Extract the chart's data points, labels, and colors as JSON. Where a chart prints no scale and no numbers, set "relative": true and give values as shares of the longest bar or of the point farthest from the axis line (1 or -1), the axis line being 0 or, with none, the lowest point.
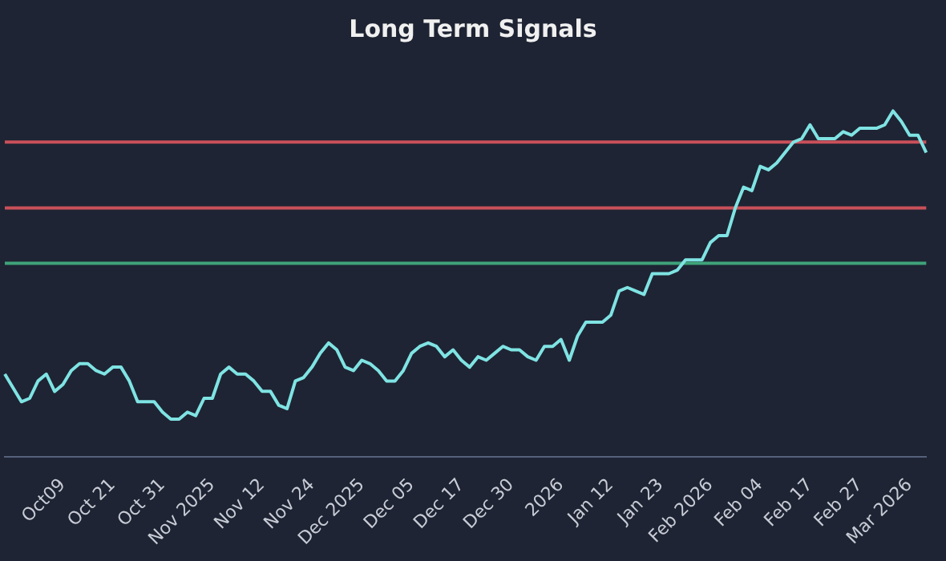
{
  "chart_data": {
    "type": "line",
    "title": "Long Term Signals",
    "relative": true,
    "categories": [
      null,
      null,
      null,
      null,
      null,
      null,
      null,
      "Oct09",
      null,
      null,
      null,
      null,
      null,
      "Oct 21",
      null,
      null,
      null,
      null,
      null,
      "Oct 31",
      null,
      null,
      null,
      null,
      null,
      "Nov 2025",
      null,
      null,
      null,
      null,
      null,
      "Nov 12",
      null,
      null,
      null,
      null,
      null,
      "Nov 24",
      null,
      null,
      null,
      null,
      null,
      "Dec 2025",
      null,
      null,
      null,
      null,
      null,
      "Dec 05",
      null,
      null,
      null,
      null,
      null,
      "Dec 17",
      null,
      null,
      null,
      null,
      null,
      "Dec 30",
      null,
      null,
      null,
      null,
      null,
      "2026",
      null,
      null,
      null,
      null,
      null,
      "Jan 12",
      null,
      null,
      null,
      null,
      null,
      "Jan 23",
      null,
      null,
      null,
      null,
      null,
      "Feb 2026",
      null,
      null,
      null,
      null,
      null,
      "Feb 04",
      null,
      null,
      null,
      null,
      null,
      "Feb 17",
      null,
      null,
      null,
      null,
      null,
      "Feb 27",
      null,
      null,
      null,
      null,
      null,
      "Mar 2026",
      null,
      null
    ],
    "series": [
      {
        "color": "#7fe3e3",
        "values": [
          0.24,
          0.2,
          0.16,
          0.17,
          0.22,
          0.24,
          0.19,
          0.21,
          0.25,
          0.27,
          0.27,
          0.25,
          0.24,
          0.26,
          0.26,
          0.22,
          0.16,
          0.16,
          0.16,
          0.13,
          0.11,
          0.11,
          0.13,
          0.12,
          0.17,
          0.17,
          0.24,
          0.26,
          0.24,
          0.24,
          0.22,
          0.19,
          0.19,
          0.15,
          0.14,
          0.22,
          0.23,
          0.26,
          0.3,
          0.33,
          0.31,
          0.26,
          0.25,
          0.28,
          0.27,
          0.25,
          0.22,
          0.22,
          0.25,
          0.3,
          0.32,
          0.33,
          0.32,
          0.29,
          0.31,
          0.28,
          0.26,
          0.29,
          0.28,
          0.3,
          0.32,
          0.31,
          0.31,
          0.29,
          0.28,
          0.32,
          0.32,
          0.34,
          0.28,
          0.35,
          0.39,
          0.39,
          0.39,
          0.41,
          0.48,
          0.49,
          0.48,
          0.47,
          0.53,
          0.53,
          0.53,
          0.54,
          0.57,
          0.57,
          0.57,
          0.62,
          0.64,
          0.64,
          0.72,
          0.78,
          0.77,
          0.84,
          0.83,
          0.85,
          0.88,
          0.91,
          0.92,
          0.96,
          0.92,
          0.92,
          0.92,
          0.94,
          0.93,
          0.95,
          0.95,
          0.95,
          0.96,
          1,
          0.97,
          0.93,
          0.93,
          0.88
        ]
      }
    ],
    "ref_lines": [
      {
        "axis": "y",
        "value": 0.91,
        "color": "#c9505a"
      },
      {
        "axis": "y",
        "value": 0.72,
        "color": "#c9505a"
      },
      {
        "axis": "y",
        "value": 0.56,
        "color": "#3fa37a"
      }
    ],
    "marker": "none",
    "line_style": "solid",
    "legend": false,
    "grid": false
  }
}
